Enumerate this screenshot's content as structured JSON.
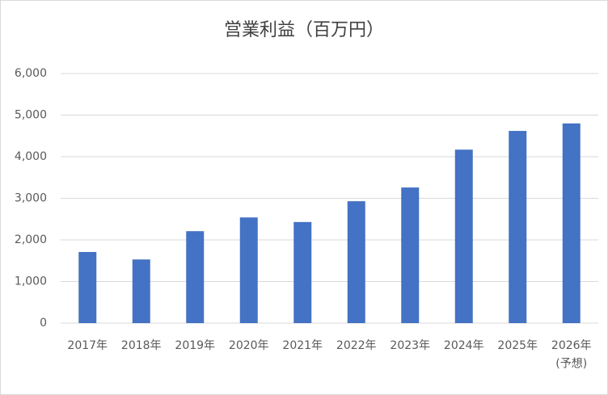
{
  "chart_data": {
    "type": "bar",
    "title": "営業利益（百万円）",
    "categories": [
      "2017年",
      "2018年",
      "2019年",
      "2020年",
      "2021年",
      "2022年",
      "2023年",
      "2024年",
      "2025年",
      "2026年\n(予想)"
    ],
    "values": [
      1710,
      1530,
      2210,
      2540,
      2430,
      2930,
      3260,
      4170,
      4620,
      4800
    ],
    "color": "#4472c4",
    "ylim": [
      0,
      6000
    ],
    "yticks": [
      0,
      {
        "value": 1000,
        "label": "1,000"
      },
      {
        "value": 2000,
        "label": "2,000"
      },
      {
        "value": 3000,
        "label": "3,000"
      },
      {
        "value": 4000,
        "label": "4,000"
      },
      {
        "value": 5000,
        "label": "5,000"
      },
      {
        "value": 6000,
        "label": "6,000"
      }
    ],
    "grid": true
  }
}
